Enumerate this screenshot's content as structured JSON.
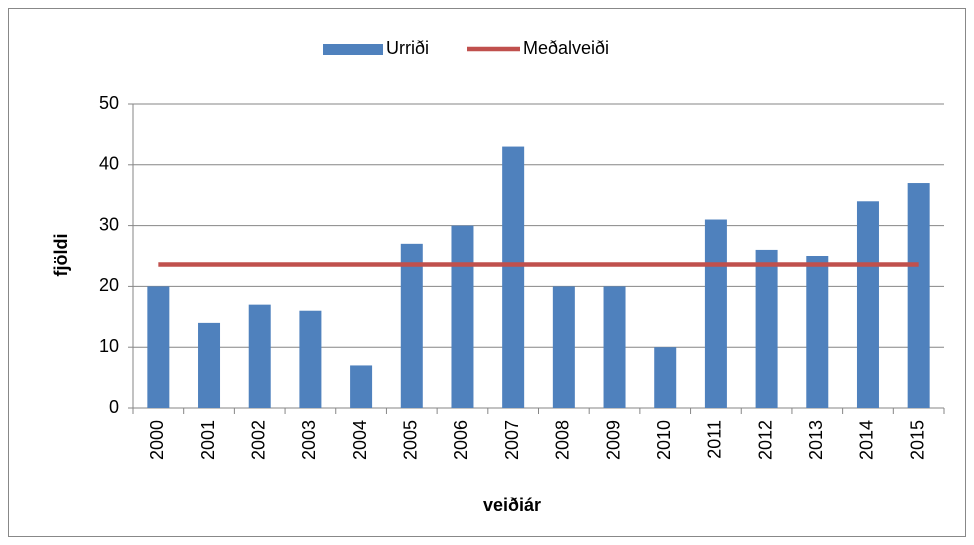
{
  "chart_data": {
    "type": "bar",
    "categories": [
      "2000",
      "2001",
      "2002",
      "2003",
      "2004",
      "2005",
      "2006",
      "2007",
      "2008",
      "2009",
      "2010",
      "2011",
      "2012",
      "2013",
      "2014",
      "2015"
    ],
    "series": [
      {
        "name": "Urriði",
        "type": "bar",
        "color": "#4f81bd",
        "values": [
          20,
          14,
          17,
          16,
          7,
          27,
          30,
          43,
          20,
          20,
          10,
          31,
          26,
          25,
          34,
          37
        ]
      },
      {
        "name": "Meðalveiði",
        "type": "line",
        "color": "#c0504d",
        "values": [
          23.6,
          23.6,
          23.6,
          23.6,
          23.6,
          23.6,
          23.6,
          23.6,
          23.6,
          23.6,
          23.6,
          23.6,
          23.6,
          23.6,
          23.6,
          23.6
        ]
      }
    ],
    "ylabel": "fjöldi",
    "xlabel": "veiðiár",
    "ylim": [
      0,
      50
    ],
    "yticks": [
      0,
      10,
      20,
      30,
      40,
      50
    ],
    "grid": true,
    "legend": "top"
  }
}
